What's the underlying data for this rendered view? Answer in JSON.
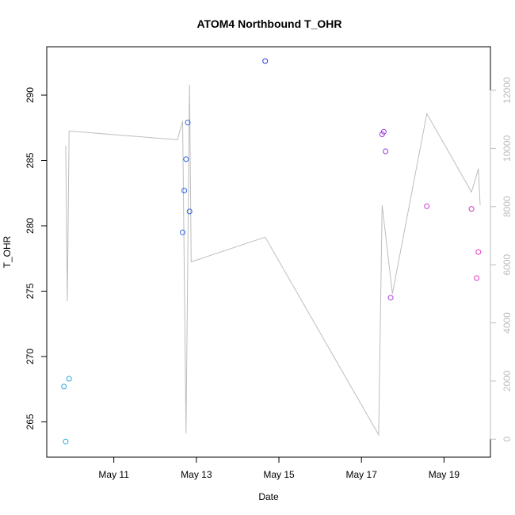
{
  "chart_data": {
    "type": "scatter",
    "title": "ATOM4 Northbound T_OHR",
    "xlabel": "Date",
    "ylabel": "T_OHR",
    "x_ticks": [
      "May 11",
      "May 13",
      "May 15",
      "May 17",
      "May 19"
    ],
    "x_tick_dates": [
      "2016-05-11",
      "2016-05-13",
      "2016-05-15",
      "2016-05-17",
      "2016-05-19"
    ],
    "xlim": [
      "2016-05-09 09:00",
      "2016-05-20 03:00"
    ],
    "ylim": [
      262.3,
      293.7
    ],
    "y_ticks": [
      265,
      270,
      275,
      280,
      285,
      290
    ],
    "y2lim": [
      -620,
      13500
    ],
    "y2_ticks": [
      0,
      2000,
      4000,
      6000,
      8000,
      10000,
      12000
    ],
    "y2_color": "#bdbdbd",
    "grid": false,
    "legend": "none",
    "points": [
      {
        "x": "2016-05-09 19:00",
        "y": 267.7,
        "color": "#29a8e0"
      },
      {
        "x": "2016-05-09 20:00",
        "y": 263.5,
        "color": "#29a8e0"
      },
      {
        "x": "2016-05-09 22:00",
        "y": 268.3,
        "color": "#29a8e0"
      },
      {
        "x": "2016-05-12 16:00",
        "y": 279.5,
        "color": "#2b62de"
      },
      {
        "x": "2016-05-12 17:00",
        "y": 282.7,
        "color": "#2b62de"
      },
      {
        "x": "2016-05-12 18:00",
        "y": 285.1,
        "color": "#2b62de"
      },
      {
        "x": "2016-05-12 19:00",
        "y": 287.9,
        "color": "#2b62de"
      },
      {
        "x": "2016-05-12 20:00",
        "y": 281.1,
        "color": "#2b62de"
      },
      {
        "x": "2016-05-14 16:00",
        "y": 292.6,
        "color": "#2c3ce0"
      },
      {
        "x": "2016-05-17 12:00",
        "y": 287.0,
        "color": "#9b3be0"
      },
      {
        "x": "2016-05-17 13:00",
        "y": 287.2,
        "color": "#9b3be0"
      },
      {
        "x": "2016-05-17 14:00",
        "y": 285.7,
        "color": "#9b3be0"
      },
      {
        "x": "2016-05-17 17:00",
        "y": 274.5,
        "color": "#a23ad6"
      },
      {
        "x": "2016-05-18 14:00",
        "y": 281.5,
        "color": "#c43ad2"
      },
      {
        "x": "2016-05-19 16:00",
        "y": 281.3,
        "color": "#d23ac4"
      },
      {
        "x": "2016-05-19 19:00",
        "y": 276.0,
        "color": "#e03ac0"
      },
      {
        "x": "2016-05-19 20:00",
        "y": 278.0,
        "color": "#e03ac0"
      }
    ],
    "secondary_line": {
      "axis": "right",
      "color": "#bdbdbd",
      "points": [
        {
          "x": "2016-05-09 20:00",
          "y": 10100
        },
        {
          "x": "2016-05-09 21:00",
          "y": 4750
        },
        {
          "x": "2016-05-09 22:00",
          "y": 10600
        },
        {
          "x": "2016-05-12 13:00",
          "y": 10300
        },
        {
          "x": "2016-05-12 16:00",
          "y": 10950
        },
        {
          "x": "2016-05-12 18:00",
          "y": 200
        },
        {
          "x": "2016-05-12 20:00",
          "y": 12200
        },
        {
          "x": "2016-05-12 21:00",
          "y": 6100
        },
        {
          "x": "2016-05-14 16:00",
          "y": 6950
        },
        {
          "x": "2016-05-17 10:00",
          "y": 150
        },
        {
          "x": "2016-05-17 12:00",
          "y": 8050
        },
        {
          "x": "2016-05-17 18:00",
          "y": 5000
        },
        {
          "x": "2016-05-18 14:00",
          "y": 11200
        },
        {
          "x": "2016-05-19 16:00",
          "y": 8500
        },
        {
          "x": "2016-05-19 20:00",
          "y": 9300
        },
        {
          "x": "2016-05-19 21:00",
          "y": 8050
        }
      ]
    }
  }
}
